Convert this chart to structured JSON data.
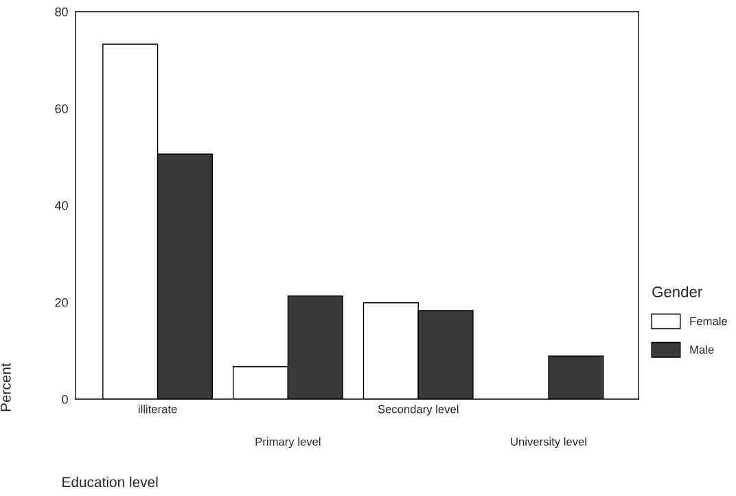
{
  "chart_data": {
    "type": "bar",
    "xlabel": "Education level",
    "ylabel": "Percent",
    "legend_title": "Gender",
    "categories": [
      "illiterate",
      "Primary level",
      "Secondary level",
      "University level"
    ],
    "series": [
      {
        "name": "Female",
        "color": "#ffffff",
        "values": [
          73.3,
          6.7,
          19.9,
          null
        ]
      },
      {
        "name": "Male",
        "color": "#3a3a3a",
        "values": [
          50.6,
          21.3,
          18.3,
          8.9
        ]
      }
    ],
    "ylim": [
      0,
      80
    ],
    "yticks": [
      0,
      20,
      40,
      60,
      80
    ],
    "grid": false,
    "legend": "right"
  }
}
